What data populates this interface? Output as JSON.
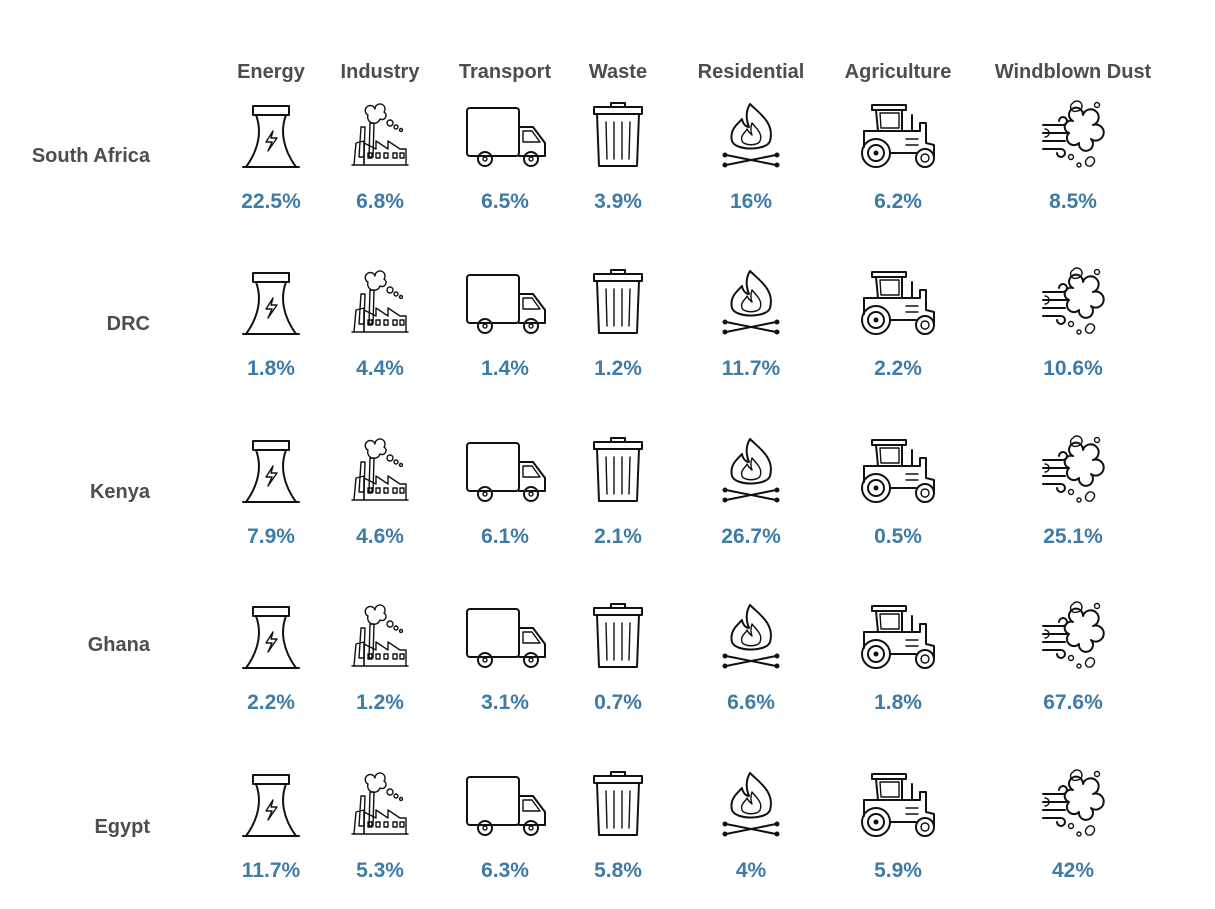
{
  "chart_data": {
    "type": "table",
    "title": "",
    "categories": [
      "Energy",
      "Industry",
      "Transport",
      "Waste",
      "Residential",
      "Agriculture",
      "Windblown Dust"
    ],
    "category_icons": [
      "cooling-tower-icon",
      "factory-icon",
      "truck-icon",
      "trash-can-icon",
      "campfire-icon",
      "tractor-icon",
      "windblown-dust-icon"
    ],
    "rows": [
      {
        "name": "South Africa",
        "labels": [
          "22.5%",
          "6.8%",
          "6.5%",
          "3.9%",
          "16%",
          "6.2%",
          "8.5%"
        ]
      },
      {
        "name": "DRC",
        "labels": [
          "1.8%",
          "4.4%",
          "1.4%",
          "1.2%",
          "11.7%",
          "2.2%",
          "10.6%"
        ]
      },
      {
        "name": "Kenya",
        "labels": [
          "7.9%",
          "4.6%",
          "6.1%",
          "2.1%",
          "26.7%",
          "0.5%",
          "25.1%"
        ]
      },
      {
        "name": "Ghana",
        "labels": [
          "2.2%",
          "1.2%",
          "3.1%",
          "0.7%",
          "6.6%",
          "1.8%",
          "67.6%"
        ]
      },
      {
        "name": "Egypt",
        "labels": [
          "11.7%",
          "5.3%",
          "6.3%",
          "5.8%",
          "4%",
          "5.9%",
          "42%"
        ]
      }
    ],
    "colors": {
      "header_text": "#4d4d4d",
      "row_label_text": "#4d4d4d",
      "value_text": "#3e7ba6",
      "icon_stroke": "#111111"
    }
  }
}
